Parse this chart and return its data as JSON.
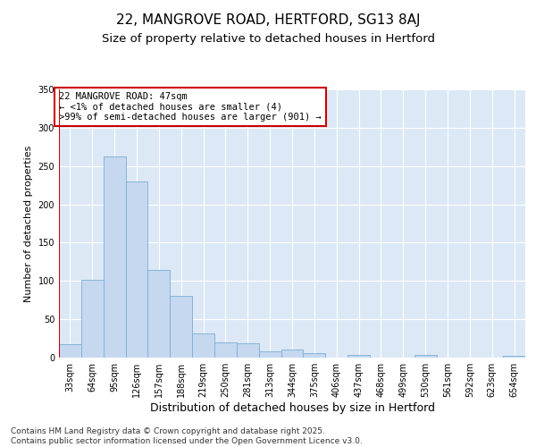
{
  "title": "22, MANGROVE ROAD, HERTFORD, SG13 8AJ",
  "subtitle": "Size of property relative to detached houses in Hertford",
  "xlabel": "Distribution of detached houses by size in Hertford",
  "ylabel": "Number of detached properties",
  "categories": [
    "33sqm",
    "64sqm",
    "95sqm",
    "126sqm",
    "157sqm",
    "188sqm",
    "219sqm",
    "250sqm",
    "281sqm",
    "313sqm",
    "344sqm",
    "375sqm",
    "406sqm",
    "437sqm",
    "468sqm",
    "499sqm",
    "530sqm",
    "561sqm",
    "592sqm",
    "623sqm",
    "654sqm"
  ],
  "values": [
    18,
    101,
    263,
    230,
    114,
    81,
    31,
    20,
    19,
    8,
    10,
    6,
    0,
    4,
    0,
    0,
    3,
    0,
    0,
    0,
    2
  ],
  "bar_color": "#c5d8f0",
  "bar_edge_color": "#7aadd4",
  "annotation_line_color": "#cc0000",
  "annotation_box_edge": "#cc0000",
  "annotation_text": "22 MANGROVE ROAD: 47sqm\n← <1% of detached houses are smaller (4)\n>99% of semi-detached houses are larger (901) →",
  "background_color": "#dce8f5",
  "ylim": [
    0,
    350
  ],
  "yticks": [
    0,
    50,
    100,
    150,
    200,
    250,
    300,
    350
  ],
  "footer": "Contains HM Land Registry data © Crown copyright and database right 2025.\nContains public sector information licensed under the Open Government Licence v3.0.",
  "title_fontsize": 11,
  "subtitle_fontsize": 9.5,
  "xlabel_fontsize": 9,
  "ylabel_fontsize": 8,
  "tick_fontsize": 7,
  "annotation_fontsize": 7.5,
  "footer_fontsize": 6.5
}
